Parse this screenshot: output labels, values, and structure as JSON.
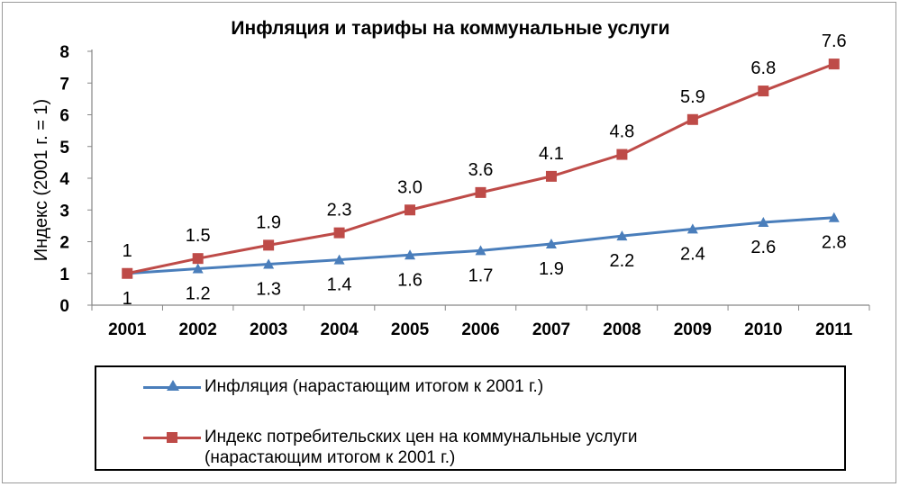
{
  "chart_data": {
    "type": "line",
    "title": "Инфляция и тарифы на коммунальные  услуги",
    "xlabel": "",
    "ylabel": "Индекс (2001 г. = 1)",
    "categories": [
      "2001",
      "2002",
      "2003",
      "2004",
      "2005",
      "2006",
      "2007",
      "2008",
      "2009",
      "2010",
      "2011"
    ],
    "ylim": [
      0,
      8
    ],
    "yticks": [
      0,
      1,
      2,
      3,
      4,
      5,
      6,
      7,
      8
    ],
    "grid": false,
    "legend_position": "bottom",
    "series": [
      {
        "name": "Инфляция (нарастающим итогом к 2001 г.)",
        "values": [
          1,
          1.15,
          1.29,
          1.43,
          1.58,
          1.72,
          1.93,
          2.18,
          2.4,
          2.61,
          2.76
        ],
        "labels": [
          "1",
          "1.2",
          "1.3",
          "1.4",
          "1.6",
          "1.7",
          "1.9",
          "2.2",
          "2.4",
          "2.6",
          "2.8"
        ],
        "color": "#4a7ebb",
        "marker": "triangle"
      },
      {
        "name_lines": [
          "Индекс потребительских цен на коммунальные услуги",
          "(нарастающим итогом к 2001 г.)"
        ],
        "values": [
          1,
          1.47,
          1.89,
          2.28,
          3.0,
          3.55,
          4.06,
          4.75,
          5.85,
          6.75,
          7.6
        ],
        "labels": [
          "1",
          "1.5",
          "1.9",
          "2.3",
          "3.0",
          "3.6",
          "4.1",
          "4.8",
          "5.9",
          "6.8",
          "7.6"
        ],
        "color": "#be4b48",
        "marker": "square"
      }
    ]
  }
}
